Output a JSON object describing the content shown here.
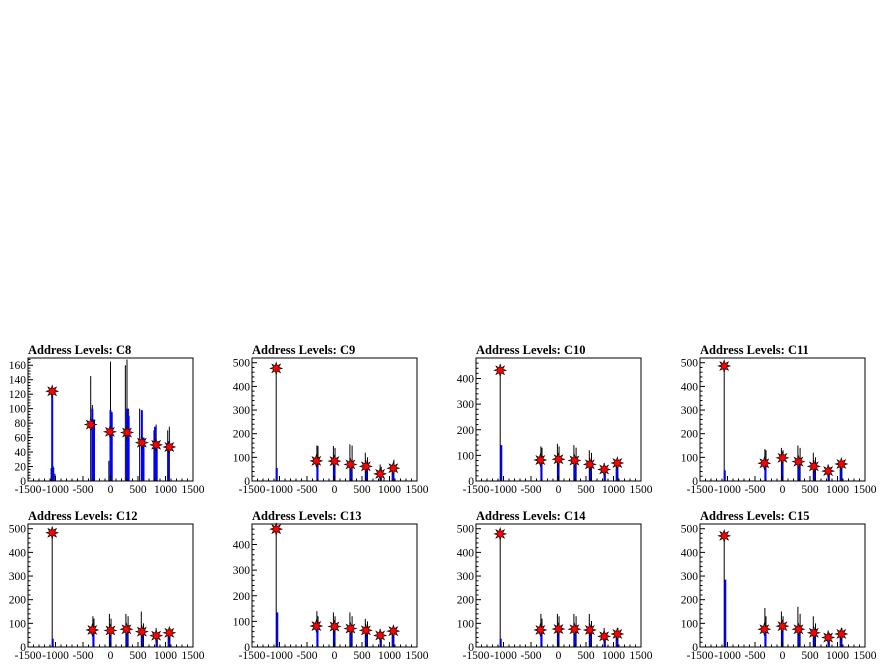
{
  "figure": {
    "bg_color": "#ffffff",
    "accent_colors": {
      "black_hist": "#000000",
      "blue_hist": "#0000ff",
      "markers": "#ff0000"
    }
  },
  "chart_data": [
    {
      "type": "bar",
      "title": "Address Levels: C8",
      "xlim": [
        -1500,
        1500
      ],
      "ylim": [
        0,
        170
      ],
      "xticks": [
        -1500,
        -1000,
        -500,
        0,
        500,
        1000,
        1500
      ],
      "xtick_labels": [
        "-1500",
        "-1000",
        "-500",
        "0",
        "500",
        "1000",
        "1500"
      ],
      "yticks": [
        0,
        20,
        40,
        60,
        80,
        100,
        120,
        140,
        160
      ],
      "ytick_labels": [
        "0",
        "20",
        "40",
        "60",
        "80",
        "100",
        "120",
        "140",
        "160"
      ],
      "black_series": {
        "x": [
          -1080,
          -1060,
          -1040,
          -1010,
          -360,
          -330,
          -300,
          -30,
          0,
          30,
          270,
          300,
          330,
          530,
          570,
          790,
          830,
          1040,
          1070
        ],
        "values": [
          18,
          130,
          20,
          10,
          145,
          105,
          60,
          28,
          165,
          95,
          160,
          168,
          100,
          100,
          55,
          70,
          78,
          70,
          75
        ]
      },
      "blue_series": {
        "x": [
          -1060,
          -1040,
          -330,
          -300,
          0,
          20,
          300,
          330,
          570,
          600,
          810,
          840,
          1050
        ],
        "values": [
          120,
          18,
          100,
          85,
          98,
          95,
          100,
          90,
          98,
          60,
          75,
          55,
          55
        ]
      },
      "markers": {
        "x": [
          -1060,
          -360,
          -10,
          300,
          570,
          830,
          1070
        ],
        "values": [
          124,
          78,
          68,
          67,
          53,
          50,
          47
        ]
      }
    },
    {
      "type": "bar",
      "title": "Address Levels: C9",
      "xlim": [
        -1500,
        1500
      ],
      "ylim": [
        0,
        520
      ],
      "xticks": [
        -1500,
        -1000,
        -500,
        0,
        500,
        1000,
        1500
      ],
      "xtick_labels": [
        "-1500",
        "-1000",
        "-500",
        "0",
        "500",
        "1000",
        "1500"
      ],
      "yticks": [
        0,
        100,
        200,
        300,
        400,
        500
      ],
      "ytick_labels": [
        "0",
        "100",
        "200",
        "300",
        "400",
        "500"
      ],
      "black_series": {
        "x": [
          -1060,
          -320,
          -300,
          -20,
          10,
          280,
          320,
          560,
          600,
          830,
          850,
          1050,
          1080
        ],
        "values": [
          490,
          150,
          148,
          148,
          140,
          155,
          150,
          120,
          100,
          70,
          60,
          70,
          90
        ]
      },
      "blue_series": {
        "x": [
          -1050,
          -310,
          0,
          300,
          580,
          840,
          1060
        ],
        "values": [
          55,
          60,
          80,
          70,
          55,
          30,
          45
        ]
      },
      "markers": {
        "x": [
          -1060,
          -330,
          0,
          290,
          570,
          830,
          1070
        ],
        "values": [
          476,
          85,
          84,
          70,
          62,
          30,
          54
        ]
      }
    },
    {
      "type": "bar",
      "title": "Address Levels: C10",
      "xlim": [
        -1500,
        1500
      ],
      "ylim": [
        0,
        480
      ],
      "xticks": [
        -1500,
        -1000,
        -500,
        0,
        500,
        1000,
        1500
      ],
      "xtick_labels": [
        "-1500",
        "-1000",
        "-500",
        "0",
        "500",
        "1000",
        "1500"
      ],
      "yticks": [
        0,
        100,
        200,
        300,
        400
      ],
      "ytick_labels": [
        "0",
        "100",
        "200",
        "300",
        "400"
      ],
      "black_series": {
        "x": [
          -1060,
          -320,
          -300,
          -20,
          10,
          280,
          320,
          560,
          600,
          830,
          850,
          1050,
          1080
        ],
        "values": [
          455,
          135,
          130,
          145,
          135,
          140,
          130,
          120,
          110,
          70,
          60,
          65,
          80
        ]
      },
      "blue_series": {
        "x": [
          -1040,
          -310,
          0,
          300,
          580,
          840,
          1060
        ],
        "values": [
          140,
          65,
          75,
          65,
          55,
          30,
          50
        ]
      },
      "markers": {
        "x": [
          -1060,
          -330,
          0,
          290,
          570,
          830,
          1070
        ],
        "values": [
          432,
          82,
          85,
          80,
          65,
          45,
          70
        ]
      }
    },
    {
      "type": "bar",
      "title": "Address Levels: C11",
      "xlim": [
        -1500,
        1500
      ],
      "ylim": [
        0,
        520
      ],
      "xticks": [
        -1500,
        -1000,
        -500,
        0,
        500,
        1000,
        1500
      ],
      "xtick_labels": [
        "-1500",
        "-1000",
        "-500",
        "0",
        "500",
        "1000",
        "1500"
      ],
      "yticks": [
        0,
        100,
        200,
        300,
        400,
        500
      ],
      "ytick_labels": [
        "0",
        "100",
        "200",
        "300",
        "400",
        "500"
      ],
      "black_series": {
        "x": [
          -1060,
          -320,
          -300,
          -20,
          10,
          280,
          320,
          560,
          600,
          830,
          850,
          1050,
          1080
        ],
        "values": [
          500,
          135,
          130,
          140,
          130,
          150,
          140,
          120,
          100,
          70,
          60,
          70,
          85
        ]
      },
      "blue_series": {
        "x": [
          -1050,
          -310,
          0,
          300,
          580,
          840,
          1060
        ],
        "values": [
          45,
          60,
          85,
          70,
          55,
          30,
          50
        ]
      },
      "markers": {
        "x": [
          -1060,
          -330,
          0,
          290,
          570,
          830,
          1070
        ],
        "values": [
          486,
          75,
          98,
          82,
          62,
          42,
          72
        ]
      }
    },
    {
      "type": "bar",
      "title": "Address Levels: C12",
      "xlim": [
        -1500,
        1500
      ],
      "ylim": [
        0,
        520
      ],
      "xticks": [
        -1500,
        -1000,
        -500,
        0,
        500,
        1000,
        1500
      ],
      "xtick_labels": [
        "-1500",
        "-1000",
        "-500",
        "0",
        "500",
        "1000",
        "1500"
      ],
      "yticks": [
        0,
        100,
        200,
        300,
        400,
        500
      ],
      "ytick_labels": [
        "0",
        "100",
        "200",
        "300",
        "400",
        "500"
      ],
      "black_series": {
        "x": [
          -1060,
          -320,
          -300,
          -20,
          10,
          280,
          320,
          560,
          600,
          830,
          850,
          1050,
          1080
        ],
        "values": [
          500,
          130,
          120,
          140,
          120,
          140,
          130,
          150,
          100,
          80,
          60,
          70,
          80
        ]
      },
      "blue_series": {
        "x": [
          -1050,
          -310,
          0,
          300,
          580,
          840,
          1060
        ],
        "values": [
          35,
          60,
          60,
          60,
          55,
          30,
          50
        ]
      },
      "markers": {
        "x": [
          -1060,
          -330,
          0,
          290,
          570,
          830,
          1070
        ],
        "values": [
          483,
          72,
          70,
          75,
          65,
          48,
          60
        ]
      }
    },
    {
      "type": "bar",
      "title": "Address Levels: C13",
      "xlim": [
        -1500,
        1500
      ],
      "ylim": [
        0,
        480
      ],
      "xticks": [
        -1500,
        -1000,
        -500,
        0,
        500,
        1000,
        1500
      ],
      "xtick_labels": [
        "-1500",
        "-1000",
        "-500",
        "0",
        "500",
        "1000",
        "1500"
      ],
      "yticks": [
        0,
        100,
        200,
        300,
        400
      ],
      "ytick_labels": [
        "0",
        "100",
        "200",
        "300",
        "400"
      ],
      "black_series": {
        "x": [
          -1060,
          -320,
          -300,
          -20,
          10,
          280,
          320,
          560,
          600,
          830,
          850,
          1050,
          1080
        ],
        "values": [
          470,
          140,
          120,
          135,
          120,
          135,
          120,
          110,
          100,
          70,
          60,
          65,
          80
        ]
      },
      "blue_series": {
        "x": [
          -1040,
          -310,
          0,
          300,
          580,
          840,
          1060
        ],
        "values": [
          135,
          70,
          70,
          60,
          55,
          30,
          50
        ]
      },
      "markers": {
        "x": [
          -1060,
          -330,
          0,
          290,
          570,
          830,
          1070
        ],
        "values": [
          460,
          82,
          80,
          72,
          65,
          45,
          62
        ]
      }
    },
    {
      "type": "bar",
      "title": "Address Levels: C14",
      "xlim": [
        -1500,
        1500
      ],
      "ylim": [
        0,
        520
      ],
      "xticks": [
        -1500,
        -1000,
        -500,
        0,
        500,
        1000,
        1500
      ],
      "xtick_labels": [
        "-1500",
        "-1000",
        "-500",
        "0",
        "500",
        "1000",
        "1500"
      ],
      "yticks": [
        0,
        100,
        200,
        300,
        400,
        500
      ],
      "ytick_labels": [
        "0",
        "100",
        "200",
        "300",
        "400",
        "500"
      ],
      "black_series": {
        "x": [
          -1060,
          -320,
          -300,
          -20,
          10,
          280,
          320,
          560,
          600,
          830,
          850,
          1050,
          1080
        ],
        "values": [
          490,
          140,
          120,
          140,
          130,
          140,
          130,
          140,
          110,
          80,
          60,
          65,
          80
        ]
      },
      "blue_series": {
        "x": [
          -1050,
          -310,
          0,
          300,
          580,
          840,
          1060
        ],
        "values": [
          35,
          60,
          70,
          65,
          55,
          30,
          45
        ]
      },
      "markers": {
        "x": [
          -1060,
          -330,
          0,
          290,
          570,
          830,
          1070
        ],
        "values": [
          478,
          72,
          76,
          75,
          72,
          45,
          55
        ]
      }
    },
    {
      "type": "bar",
      "title": "Address Levels: C15",
      "xlim": [
        -1500,
        1500
      ],
      "ylim": [
        0,
        520
      ],
      "xticks": [
        -1500,
        -1000,
        -500,
        0,
        500,
        1000,
        1500
      ],
      "xtick_labels": [
        "-1500",
        "-1000",
        "-500",
        "0",
        "500",
        "1000",
        "1500"
      ],
      "yticks": [
        0,
        100,
        200,
        300,
        400,
        500
      ],
      "ytick_labels": [
        "0",
        "100",
        "200",
        "300",
        "400",
        "500"
      ],
      "black_series": {
        "x": [
          -1060,
          -320,
          -300,
          -20,
          10,
          280,
          320,
          560,
          600,
          830,
          850,
          1050,
          1080
        ],
        "values": [
          480,
          165,
          130,
          150,
          130,
          170,
          140,
          130,
          100,
          70,
          60,
          70,
          80
        ]
      },
      "blue_series": {
        "x": [
          -1040,
          -310,
          0,
          300,
          580,
          840,
          1060
        ],
        "values": [
          285,
          70,
          80,
          70,
          55,
          30,
          50
        ]
      },
      "markers": {
        "x": [
          -1060,
          -330,
          0,
          290,
          570,
          830,
          1070
        ],
        "values": [
          470,
          75,
          88,
          75,
          60,
          40,
          55
        ]
      }
    }
  ]
}
